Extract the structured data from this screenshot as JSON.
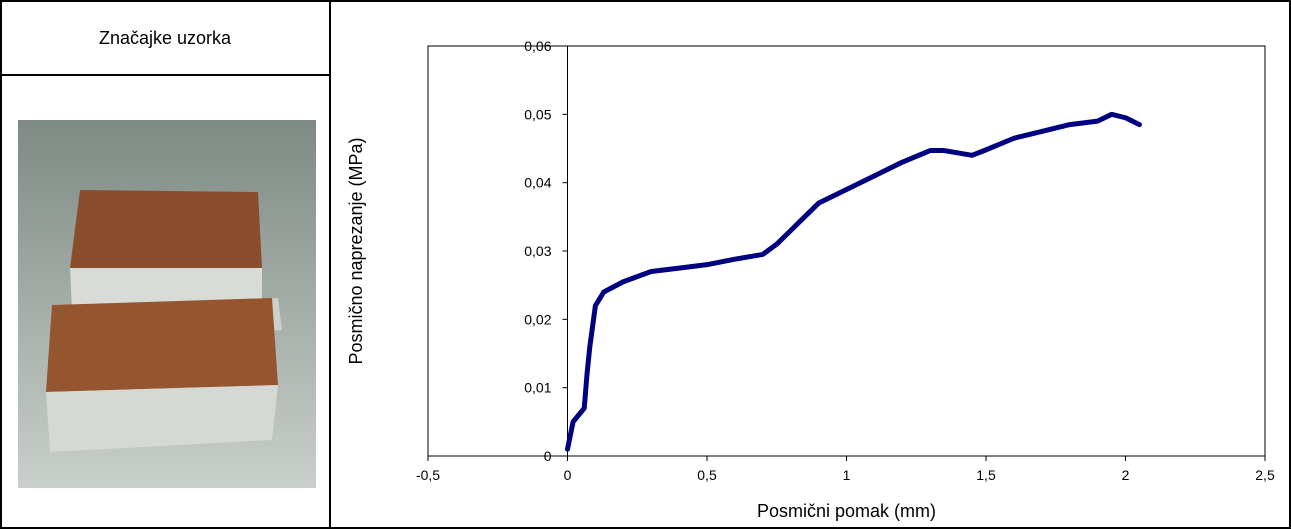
{
  "header": {
    "title": "Značajke uzorka"
  },
  "chart_data": {
    "type": "line",
    "x_label": "Posmični pomak (mm)",
    "y_label": "Posmično naprezanje (MPa)",
    "x": [
      0,
      0.02,
      0.04,
      0.06,
      0.07,
      0.08,
      0.1,
      0.13,
      0.2,
      0.3,
      0.4,
      0.5,
      0.6,
      0.7,
      0.75,
      0.8,
      0.85,
      0.9,
      1.0,
      1.1,
      1.2,
      1.3,
      1.35,
      1.45,
      1.5,
      1.6,
      1.7,
      1.8,
      1.9,
      1.95,
      2.0,
      2.05
    ],
    "values": [
      0.001,
      0.005,
      0.006,
      0.007,
      0.012,
      0.016,
      0.022,
      0.024,
      0.0255,
      0.027,
      0.0275,
      0.028,
      0.0288,
      0.0295,
      0.031,
      0.033,
      0.035,
      0.037,
      0.039,
      0.041,
      0.043,
      0.0447,
      0.0447,
      0.044,
      0.0448,
      0.0465,
      0.0475,
      0.0485,
      0.049,
      0.05,
      0.0495,
      0.0485
    ],
    "color": "#000080",
    "xlim": [
      -0.5,
      2.5
    ],
    "xticks": [
      {
        "value": -0.5,
        "label": "-0,5"
      },
      0,
      {
        "value": 0.5,
        "label": "0,5"
      },
      1,
      {
        "value": 1.5,
        "label": "1,5"
      },
      2,
      {
        "value": 2.5,
        "label": "2,5"
      }
    ],
    "ylim": [
      0,
      0.06
    ],
    "yticks": [
      0,
      {
        "value": 0.01,
        "label": "0,01"
      },
      {
        "value": 0.02,
        "label": "0,02"
      },
      {
        "value": 0.03,
        "label": "0,03"
      },
      {
        "value": 0.04,
        "label": "0,04"
      },
      {
        "value": 0.05,
        "label": "0,05"
      },
      {
        "value": 0.06,
        "label": "0,06"
      }
    ]
  }
}
